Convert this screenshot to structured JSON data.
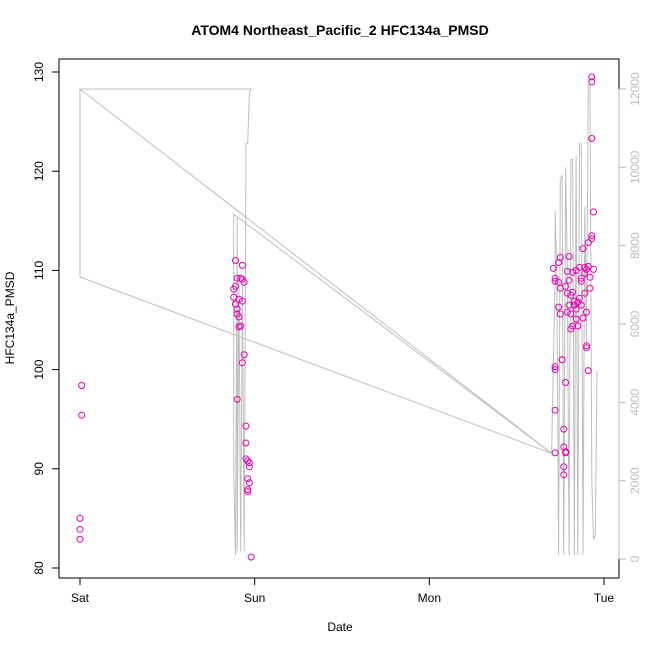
{
  "chart_data": {
    "type": "scatter",
    "title": "ATOM4 Northeast_Pacific_2 HFC134a_PMSD",
    "xlabel": "Date",
    "ylabel": "HFC134a_PMSD",
    "x_ticks": [
      "Sat",
      "Sun",
      "Mon",
      "Tue"
    ],
    "xlim": [
      -0.02,
      3.05
    ],
    "ylim": [
      80,
      130
    ],
    "y_ticks": [
      80,
      90,
      100,
      110,
      120,
      130
    ],
    "y2lim": [
      0,
      12000
    ],
    "y2_ticks": [
      0,
      2000,
      4000,
      6000,
      8000,
      10000,
      12000
    ],
    "grid": false,
    "series": [
      {
        "axis": "left",
        "style": "points",
        "color": "#e600b4",
        "points": [
          [
            0.0,
            85.0
          ],
          [
            0.0,
            83.9
          ],
          [
            0.0,
            82.9
          ],
          [
            0.01,
            98.4
          ],
          [
            0.01,
            95.4
          ],
          [
            0.89,
            111.0
          ],
          [
            0.89,
            108.4
          ],
          [
            0.88,
            108.1
          ],
          [
            0.88,
            107.3
          ],
          [
            0.89,
            106.6
          ],
          [
            0.9,
            106.1
          ],
          [
            0.9,
            105.6
          ],
          [
            0.91,
            105.3
          ],
          [
            0.9,
            109.2
          ],
          [
            0.91,
            107.1
          ],
          [
            0.91,
            104.3
          ],
          [
            0.92,
            104.4
          ],
          [
            0.92,
            109.2
          ],
          [
            0.93,
            109.1
          ],
          [
            0.93,
            110.5
          ],
          [
            0.94,
            108.8
          ],
          [
            0.93,
            106.9
          ],
          [
            0.94,
            101.5
          ],
          [
            0.93,
            100.7
          ],
          [
            0.9,
            97.0
          ],
          [
            0.95,
            94.3
          ],
          [
            0.95,
            92.6
          ],
          [
            0.95,
            91.0
          ],
          [
            0.96,
            90.8
          ],
          [
            0.97,
            90.6
          ],
          [
            0.97,
            90.2
          ],
          [
            0.96,
            89.0
          ],
          [
            0.97,
            88.6
          ],
          [
            0.96,
            87.9
          ],
          [
            0.96,
            87.7
          ],
          [
            0.98,
            81.1
          ],
          [
            2.71,
            110.2
          ],
          [
            2.72,
            109.2
          ],
          [
            2.72,
            108.9
          ],
          [
            2.74,
            110.8
          ],
          [
            2.75,
            111.3
          ],
          [
            2.74,
            108.8
          ],
          [
            2.75,
            108.2
          ],
          [
            2.74,
            106.3
          ],
          [
            2.75,
            105.6
          ],
          [
            2.72,
            100.3
          ],
          [
            2.72,
            100.0
          ],
          [
            2.72,
            95.9
          ],
          [
            2.72,
            91.6
          ],
          [
            2.76,
            101.0
          ],
          [
            2.76,
            101.0
          ],
          [
            2.77,
            94.0
          ],
          [
            2.77,
            92.2
          ],
          [
            2.78,
            91.7
          ],
          [
            2.78,
            91.6
          ],
          [
            2.77,
            90.2
          ],
          [
            2.77,
            89.4
          ],
          [
            2.78,
            98.7
          ],
          [
            2.79,
            109.9
          ],
          [
            2.78,
            108.4
          ],
          [
            2.79,
            107.7
          ],
          [
            2.79,
            105.8
          ],
          [
            2.8,
            111.4
          ],
          [
            2.8,
            109.0
          ],
          [
            2.81,
            107.5
          ],
          [
            2.8,
            106.5
          ],
          [
            2.81,
            105.6
          ],
          [
            2.82,
            104.4
          ],
          [
            2.81,
            104.1
          ],
          [
            2.82,
            109.8
          ],
          [
            2.82,
            107.8
          ],
          [
            2.83,
            106.9
          ],
          [
            2.83,
            106.5
          ],
          [
            2.84,
            106.1
          ],
          [
            2.84,
            105.1
          ],
          [
            2.85,
            104.4
          ],
          [
            2.84,
            110.0
          ],
          [
            2.85,
            106.8
          ],
          [
            2.86,
            107.2
          ],
          [
            2.86,
            110.3
          ],
          [
            2.87,
            109.2
          ],
          [
            2.87,
            108.9
          ],
          [
            2.87,
            106.5
          ],
          [
            2.88,
            105.2
          ],
          [
            2.88,
            112.2
          ],
          [
            2.89,
            110.3
          ],
          [
            2.89,
            109.7
          ],
          [
            2.89,
            107.7
          ],
          [
            2.9,
            110.1
          ],
          [
            2.9,
            105.8
          ],
          [
            2.9,
            102.4
          ],
          [
            2.9,
            102.2
          ],
          [
            2.91,
            99.9
          ],
          [
            2.91,
            112.8
          ],
          [
            2.91,
            110.4
          ],
          [
            2.92,
            109.3
          ],
          [
            2.92,
            108.2
          ],
          [
            2.93,
            113.2
          ],
          [
            2.93,
            113.5
          ],
          [
            2.94,
            110.1
          ],
          [
            2.94,
            115.9
          ],
          [
            2.93,
            123.3
          ],
          [
            2.93,
            129.0
          ],
          [
            2.93,
            129.5
          ]
        ]
      },
      {
        "axis": "right",
        "style": "line",
        "color": "#bebebe",
        "points": [
          [
            0.0,
            12000
          ],
          [
            0.0,
            7200
          ],
          [
            0.0,
            7200
          ],
          [
            2.7,
            2700
          ],
          [
            0.88,
            8800
          ],
          [
            0.88,
            2300
          ],
          [
            0.89,
            100
          ],
          [
            0.9,
            8700
          ],
          [
            0.9,
            200
          ],
          [
            0.91,
            7200
          ],
          [
            0.92,
            200
          ],
          [
            0.93,
            7000
          ],
          [
            0.94,
            200
          ],
          [
            0.95,
            9700
          ],
          [
            0.95,
            10600
          ],
          [
            0.96,
            10600
          ],
          [
            0.97,
            11900
          ],
          [
            0.98,
            12000
          ],
          [
            0.0,
            12000
          ],
          [
            2.7,
            2700
          ],
          [
            2.72,
            7200
          ],
          [
            2.72,
            8900
          ],
          [
            2.73,
            7300
          ],
          [
            2.74,
            100
          ],
          [
            2.75,
            9700
          ],
          [
            2.76,
            9800
          ],
          [
            2.77,
            100
          ],
          [
            2.78,
            10000
          ],
          [
            2.79,
            7500
          ],
          [
            2.8,
            100
          ],
          [
            2.81,
            10200
          ],
          [
            2.82,
            10200
          ],
          [
            2.83,
            100
          ],
          [
            2.84,
            10300
          ],
          [
            2.85,
            100
          ],
          [
            2.86,
            10600
          ],
          [
            2.87,
            10600
          ],
          [
            2.88,
            100
          ],
          [
            2.89,
            9000
          ],
          [
            2.9,
            5500
          ],
          [
            2.91,
            12100
          ],
          [
            2.92,
            12100
          ],
          [
            2.93,
            2000
          ],
          [
            2.94,
            500
          ],
          [
            2.95,
            600
          ],
          [
            2.96,
            4800
          ]
        ]
      }
    ]
  }
}
